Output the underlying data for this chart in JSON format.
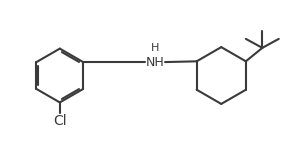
{
  "line_color": "#3a3a3a",
  "bg_color": "#ffffff",
  "line_width": 1.5,
  "font_size_label": 9,
  "Cl_label": "Cl",
  "NH_label": "H",
  "fig_width": 2.99,
  "fig_height": 1.66,
  "dpi": 100
}
